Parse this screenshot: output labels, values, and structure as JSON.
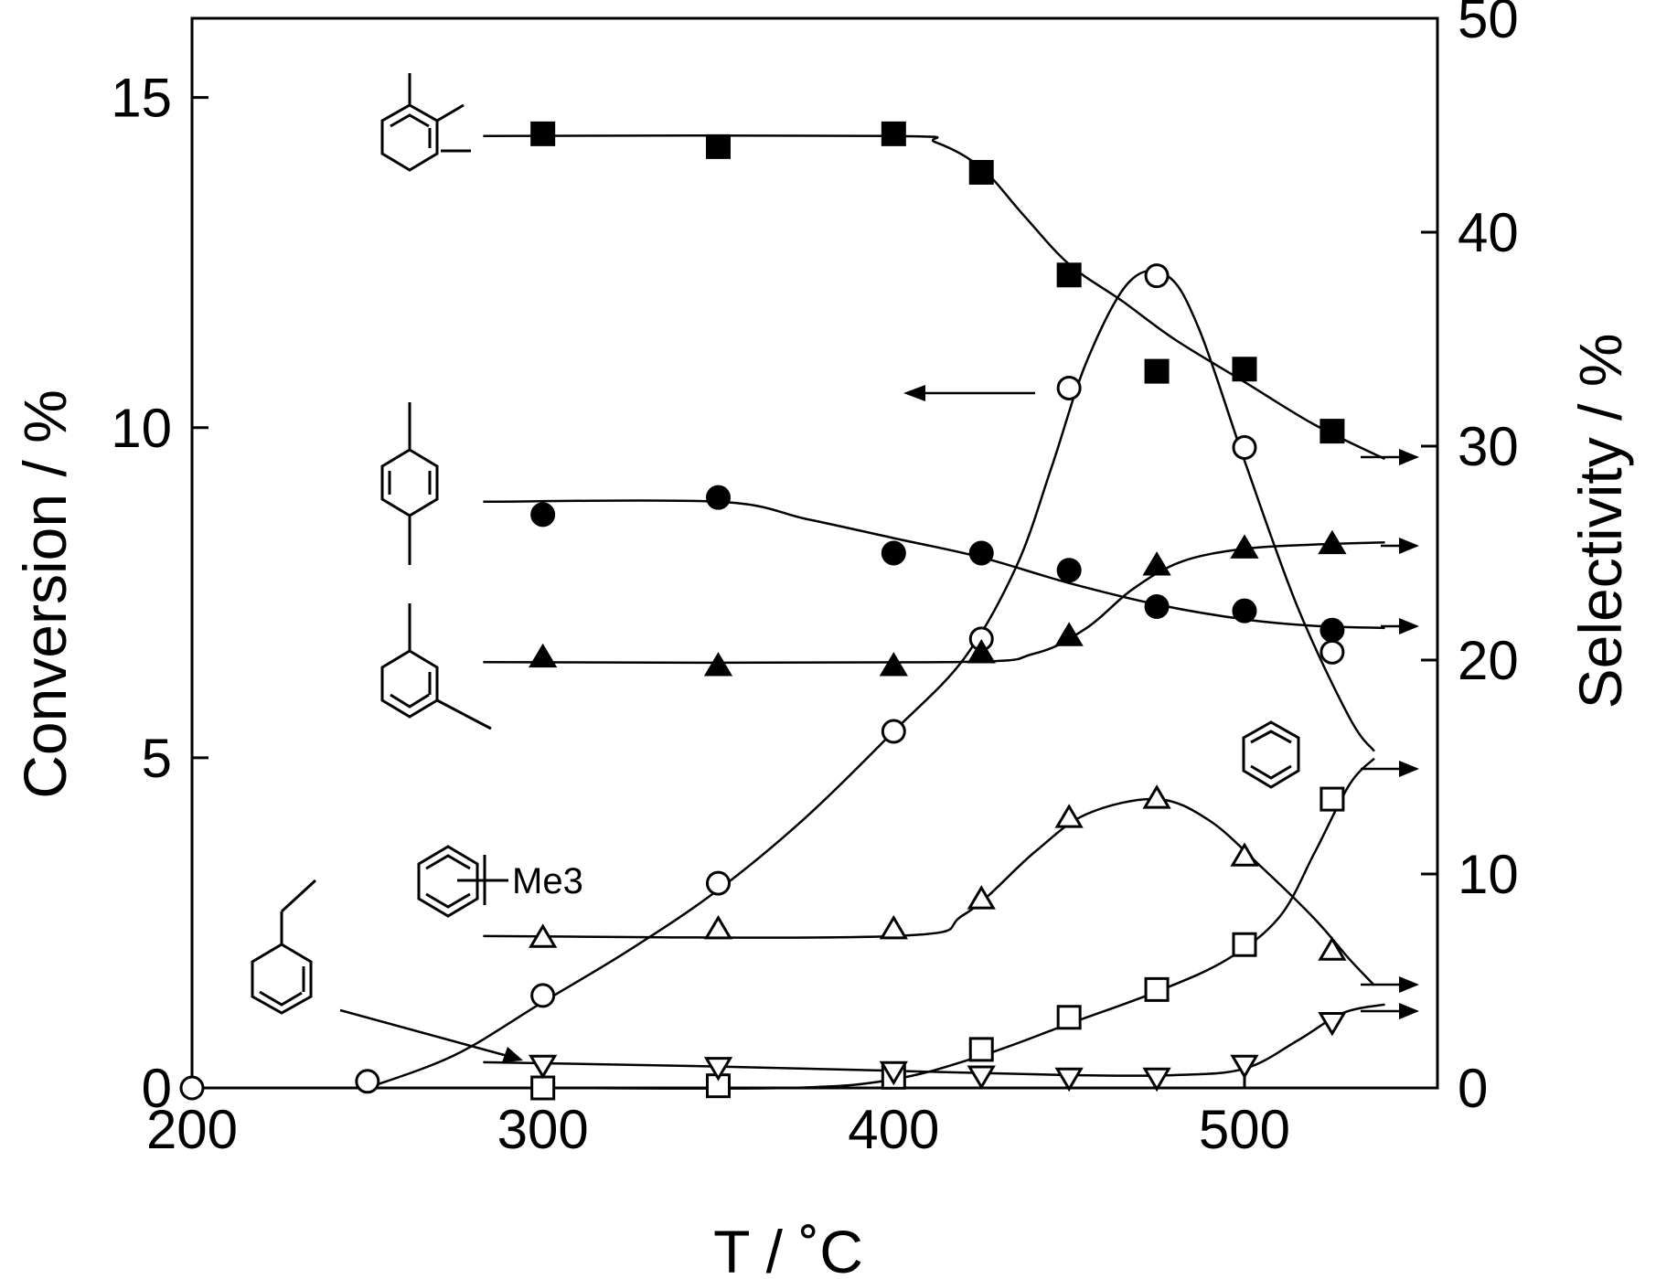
{
  "chart_data": {
    "type": "scatter",
    "xlabel": "T / ˚C",
    "ylabel_left": "Conversion / %",
    "ylabel_right": "Selectivity / %",
    "xlim": [
      200,
      555
    ],
    "ylim_left": [
      0,
      16.2
    ],
    "ylim_right": [
      0,
      50
    ],
    "x_ticks": [
      200,
      300,
      400,
      500
    ],
    "y_left_ticks": [
      0,
      5,
      10,
      15
    ],
    "y_right_ticks": [
      0,
      10,
      20,
      30,
      40,
      50
    ],
    "grid": false,
    "series": [
      {
        "axis": "left",
        "marker": "open-circle",
        "points": [
          [
            200,
            0
          ],
          [
            250,
            0.1
          ],
          [
            300,
            1.4
          ],
          [
            350,
            3.1
          ],
          [
            400,
            5.4
          ],
          [
            425,
            6.8
          ],
          [
            450,
            10.6
          ],
          [
            475,
            12.3
          ],
          [
            500,
            9.7
          ],
          [
            525,
            6.6
          ]
        ],
        "curve": [
          [
            250,
            0
          ],
          [
            275,
            0.5
          ],
          [
            300,
            1.3
          ],
          [
            325,
            2.1
          ],
          [
            350,
            3.0
          ],
          [
            375,
            4.1
          ],
          [
            400,
            5.4
          ],
          [
            420,
            6.5
          ],
          [
            435,
            7.9
          ],
          [
            445,
            9.4
          ],
          [
            455,
            11.0
          ],
          [
            467,
            12.2
          ],
          [
            478,
            12.3
          ],
          [
            487,
            11.5
          ],
          [
            500,
            9.5
          ],
          [
            515,
            7.3
          ],
          [
            530,
            5.6
          ],
          [
            537,
            5.1
          ]
        ]
      },
      {
        "axis": "right",
        "marker": "filled-square",
        "structure_label": "",
        "points": [
          [
            300,
            44.6
          ],
          [
            350,
            44.0
          ],
          [
            400,
            44.6
          ],
          [
            425,
            42.8
          ],
          [
            450,
            38.0
          ],
          [
            475,
            33.5
          ],
          [
            500,
            33.6
          ],
          [
            525,
            30.7
          ]
        ],
        "curve": [
          [
            283,
            44.5
          ],
          [
            400,
            44.5
          ],
          [
            412,
            44.2
          ],
          [
            425,
            43.0
          ],
          [
            437,
            40.8
          ],
          [
            450,
            38.5
          ],
          [
            465,
            36.8
          ],
          [
            480,
            35.0
          ],
          [
            500,
            33.0
          ],
          [
            520,
            31.0
          ],
          [
            540,
            29.4
          ]
        ]
      },
      {
        "axis": "right",
        "marker": "filled-circle",
        "structure_label": "",
        "points": [
          [
            300,
            26.8
          ],
          [
            350,
            27.6
          ],
          [
            400,
            25.0
          ],
          [
            425,
            25.0
          ],
          [
            450,
            24.2
          ],
          [
            475,
            22.5
          ],
          [
            500,
            22.3
          ],
          [
            525,
            21.4
          ]
        ],
        "curve": [
          [
            283,
            27.4
          ],
          [
            350,
            27.4
          ],
          [
            375,
            26.6
          ],
          [
            400,
            25.7
          ],
          [
            425,
            24.8
          ],
          [
            450,
            23.6
          ],
          [
            475,
            22.6
          ],
          [
            500,
            21.9
          ],
          [
            520,
            21.6
          ],
          [
            540,
            21.5
          ]
        ]
      },
      {
        "axis": "right",
        "marker": "filled-triangle",
        "structure_label": "",
        "points": [
          [
            300,
            20.1
          ],
          [
            350,
            19.7
          ],
          [
            400,
            19.7
          ],
          [
            425,
            20.3
          ],
          [
            450,
            21.1
          ],
          [
            475,
            24.4
          ],
          [
            500,
            25.2
          ],
          [
            525,
            25.4
          ]
        ],
        "curve": [
          [
            283,
            19.9
          ],
          [
            415,
            19.9
          ],
          [
            440,
            20.3
          ],
          [
            455,
            21.5
          ],
          [
            468,
            23.3
          ],
          [
            482,
            24.6
          ],
          [
            500,
            25.2
          ],
          [
            520,
            25.4
          ],
          [
            540,
            25.5
          ]
        ]
      },
      {
        "axis": "right",
        "marker": "open-triangle",
        "structure_label": "Me3",
        "points": [
          [
            300,
            7.0
          ],
          [
            350,
            7.4
          ],
          [
            400,
            7.4
          ],
          [
            425,
            8.8
          ],
          [
            450,
            12.6
          ],
          [
            475,
            13.5
          ],
          [
            500,
            10.8
          ],
          [
            525,
            6.4
          ]
        ],
        "curve": [
          [
            283,
            7.1
          ],
          [
            400,
            7.1
          ],
          [
            420,
            8.1
          ],
          [
            440,
            11.0
          ],
          [
            455,
            12.8
          ],
          [
            475,
            13.5
          ],
          [
            490,
            12.5
          ],
          [
            505,
            10.3
          ],
          [
            520,
            7.9
          ],
          [
            530,
            6.0
          ],
          [
            537,
            4.8
          ]
        ]
      },
      {
        "axis": "right",
        "marker": "open-square",
        "structure_label": "",
        "points": [
          [
            300,
            0.0
          ],
          [
            350,
            0.1
          ],
          [
            400,
            0.5
          ],
          [
            425,
            1.8
          ],
          [
            450,
            3.3
          ],
          [
            475,
            4.6
          ],
          [
            500,
            6.7
          ],
          [
            525,
            13.5
          ]
        ],
        "curve": [
          [
            300,
            0.0
          ],
          [
            370,
            0.0
          ],
          [
            400,
            0.4
          ],
          [
            425,
            1.5
          ],
          [
            450,
            3.0
          ],
          [
            475,
            4.5
          ],
          [
            495,
            6.0
          ],
          [
            510,
            8.0
          ],
          [
            520,
            11.0
          ],
          [
            530,
            14.2
          ],
          [
            537,
            15.4
          ]
        ]
      },
      {
        "axis": "right",
        "marker": "open-inverted-triangle",
        "structure_label": "",
        "points": [
          [
            300,
            1.1
          ],
          [
            350,
            1.0
          ],
          [
            400,
            0.8
          ],
          [
            425,
            0.6
          ],
          [
            450,
            0.5
          ],
          [
            475,
            0.5
          ],
          [
            500,
            1.1
          ],
          [
            525,
            3.1
          ]
        ],
        "curve": [
          [
            283,
            1.2
          ],
          [
            350,
            1.0
          ],
          [
            400,
            0.8
          ],
          [
            450,
            0.6
          ],
          [
            480,
            0.6
          ],
          [
            500,
            0.9
          ],
          [
            515,
            2.2
          ],
          [
            528,
            3.5
          ],
          [
            540,
            3.9
          ]
        ]
      }
    ]
  }
}
